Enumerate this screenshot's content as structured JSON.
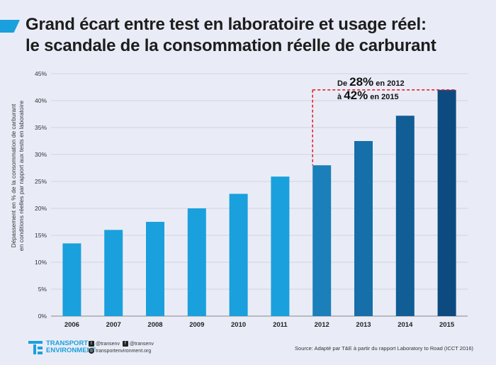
{
  "title_line1": "Grand écart entre test en laboratoire et usage réel:",
  "title_line2": "le scandale de la consommation réelle de carburant",
  "ylabel_line1": "Dépassement en % de la consommation de carburant",
  "ylabel_line2": "en conditions réelles par rapport aux tests en laboratoire",
  "annotation": {
    "line1_prefix": "De ",
    "line1_value": "28%",
    "line1_suffix": " en 2012",
    "line2_prefix": "à ",
    "line2_value": "42%",
    "line2_suffix": " en 2015"
  },
  "footer": {
    "logo_line1": "TRANSPORT &",
    "logo_line2": "ENVIRONMENT",
    "twitter": "@transenv",
    "facebook": "@transenv",
    "website": "transportenvironment.org",
    "source": "Source: Adapté par T&E à partir du rapport Laboratory to Road (ICCT 2016)"
  },
  "colors": {
    "light_bar": "#1aa0dc",
    "annotation_line": "#e8202a",
    "bar_gradient": [
      "#1aa0dc",
      "#1aa0dc",
      "#1aa0dc",
      "#1aa0dc",
      "#1aa0dc",
      "#1aa0dc",
      "#1b7fba",
      "#166fa9",
      "#115d95",
      "#0d4a7f"
    ]
  },
  "chart_data": {
    "type": "bar",
    "categories": [
      "2006",
      "2007",
      "2008",
      "2009",
      "2010",
      "2011",
      "2012",
      "2013",
      "2014",
      "2015"
    ],
    "values": [
      13.5,
      16,
      17.5,
      20,
      22.7,
      25.9,
      28,
      32.5,
      37.2,
      42
    ],
    "ylim": [
      0,
      45
    ],
    "yticks": [
      "0%",
      "5%",
      "10%",
      "15%",
      "20%",
      "25%",
      "30%",
      "35%",
      "40%",
      "45%"
    ],
    "grid": true
  }
}
